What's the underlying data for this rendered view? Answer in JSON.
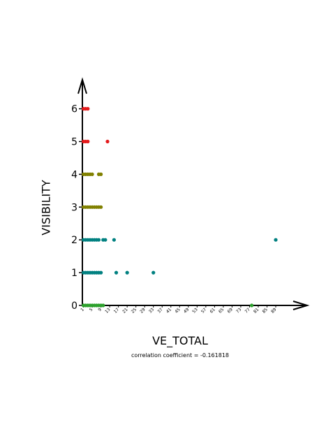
{
  "chart_data": {
    "type": "scatter",
    "title": "",
    "xlabel": "VE_TOTAL",
    "ylabel": "VISIBILITY",
    "annotation": "correlation coefficient = -0.161818",
    "ylim": [
      0,
      6
    ],
    "yticks": [
      "0",
      "1",
      "2",
      "3",
      "4",
      "5",
      "6"
    ],
    "xticks": [
      "1",
      "5",
      "9",
      "13",
      "17",
      "21",
      "25",
      "29",
      "33",
      "37",
      "41",
      "45",
      "49",
      "53",
      "57",
      "61",
      "65",
      "69",
      "73",
      "77",
      "81",
      "85",
      "89"
    ],
    "xlim": [
      0,
      104
    ],
    "grid": false,
    "legend": "none",
    "colors": {
      "0": "#2ca02c",
      "1": "#008080",
      "2": "#008080",
      "3": "#808000",
      "4": "#808000",
      "5": "#e41a1c",
      "6": "#e41a1c"
    },
    "points": [
      {
        "x": 1,
        "y": 0
      },
      {
        "x": 2,
        "y": 0
      },
      {
        "x": 3,
        "y": 0
      },
      {
        "x": 4,
        "y": 0
      },
      {
        "x": 5,
        "y": 0
      },
      {
        "x": 6,
        "y": 0
      },
      {
        "x": 7,
        "y": 0
      },
      {
        "x": 8,
        "y": 0
      },
      {
        "x": 9,
        "y": 0
      },
      {
        "x": 10,
        "y": 0
      },
      {
        "x": 78,
        "y": 0
      },
      {
        "x": 1,
        "y": 1
      },
      {
        "x": 2,
        "y": 1
      },
      {
        "x": 3,
        "y": 1
      },
      {
        "x": 4,
        "y": 1
      },
      {
        "x": 5,
        "y": 1
      },
      {
        "x": 6,
        "y": 1
      },
      {
        "x": 7,
        "y": 1
      },
      {
        "x": 8,
        "y": 1
      },
      {
        "x": 9,
        "y": 1
      },
      {
        "x": 16,
        "y": 1
      },
      {
        "x": 21,
        "y": 1
      },
      {
        "x": 33,
        "y": 1
      },
      {
        "x": 1,
        "y": 2
      },
      {
        "x": 2,
        "y": 2
      },
      {
        "x": 3,
        "y": 2
      },
      {
        "x": 4,
        "y": 2
      },
      {
        "x": 5,
        "y": 2
      },
      {
        "x": 6,
        "y": 2
      },
      {
        "x": 7,
        "y": 2
      },
      {
        "x": 8,
        "y": 2
      },
      {
        "x": 10,
        "y": 2
      },
      {
        "x": 11,
        "y": 2
      },
      {
        "x": 15,
        "y": 2
      },
      {
        "x": 89,
        "y": 2
      },
      {
        "x": 1,
        "y": 3
      },
      {
        "x": 2,
        "y": 3
      },
      {
        "x": 3,
        "y": 3
      },
      {
        "x": 4,
        "y": 3
      },
      {
        "x": 5,
        "y": 3
      },
      {
        "x": 6,
        "y": 3
      },
      {
        "x": 7,
        "y": 3
      },
      {
        "x": 8,
        "y": 3
      },
      {
        "x": 9,
        "y": 3
      },
      {
        "x": 1,
        "y": 4
      },
      {
        "x": 2,
        "y": 4
      },
      {
        "x": 3,
        "y": 4
      },
      {
        "x": 4,
        "y": 4
      },
      {
        "x": 5,
        "y": 4
      },
      {
        "x": 8,
        "y": 4
      },
      {
        "x": 9,
        "y": 4
      },
      {
        "x": 1,
        "y": 5
      },
      {
        "x": 2,
        "y": 5
      },
      {
        "x": 3,
        "y": 5
      },
      {
        "x": 12,
        "y": 5
      },
      {
        "x": 1,
        "y": 6
      },
      {
        "x": 2,
        "y": 6
      },
      {
        "x": 3,
        "y": 6
      }
    ]
  }
}
